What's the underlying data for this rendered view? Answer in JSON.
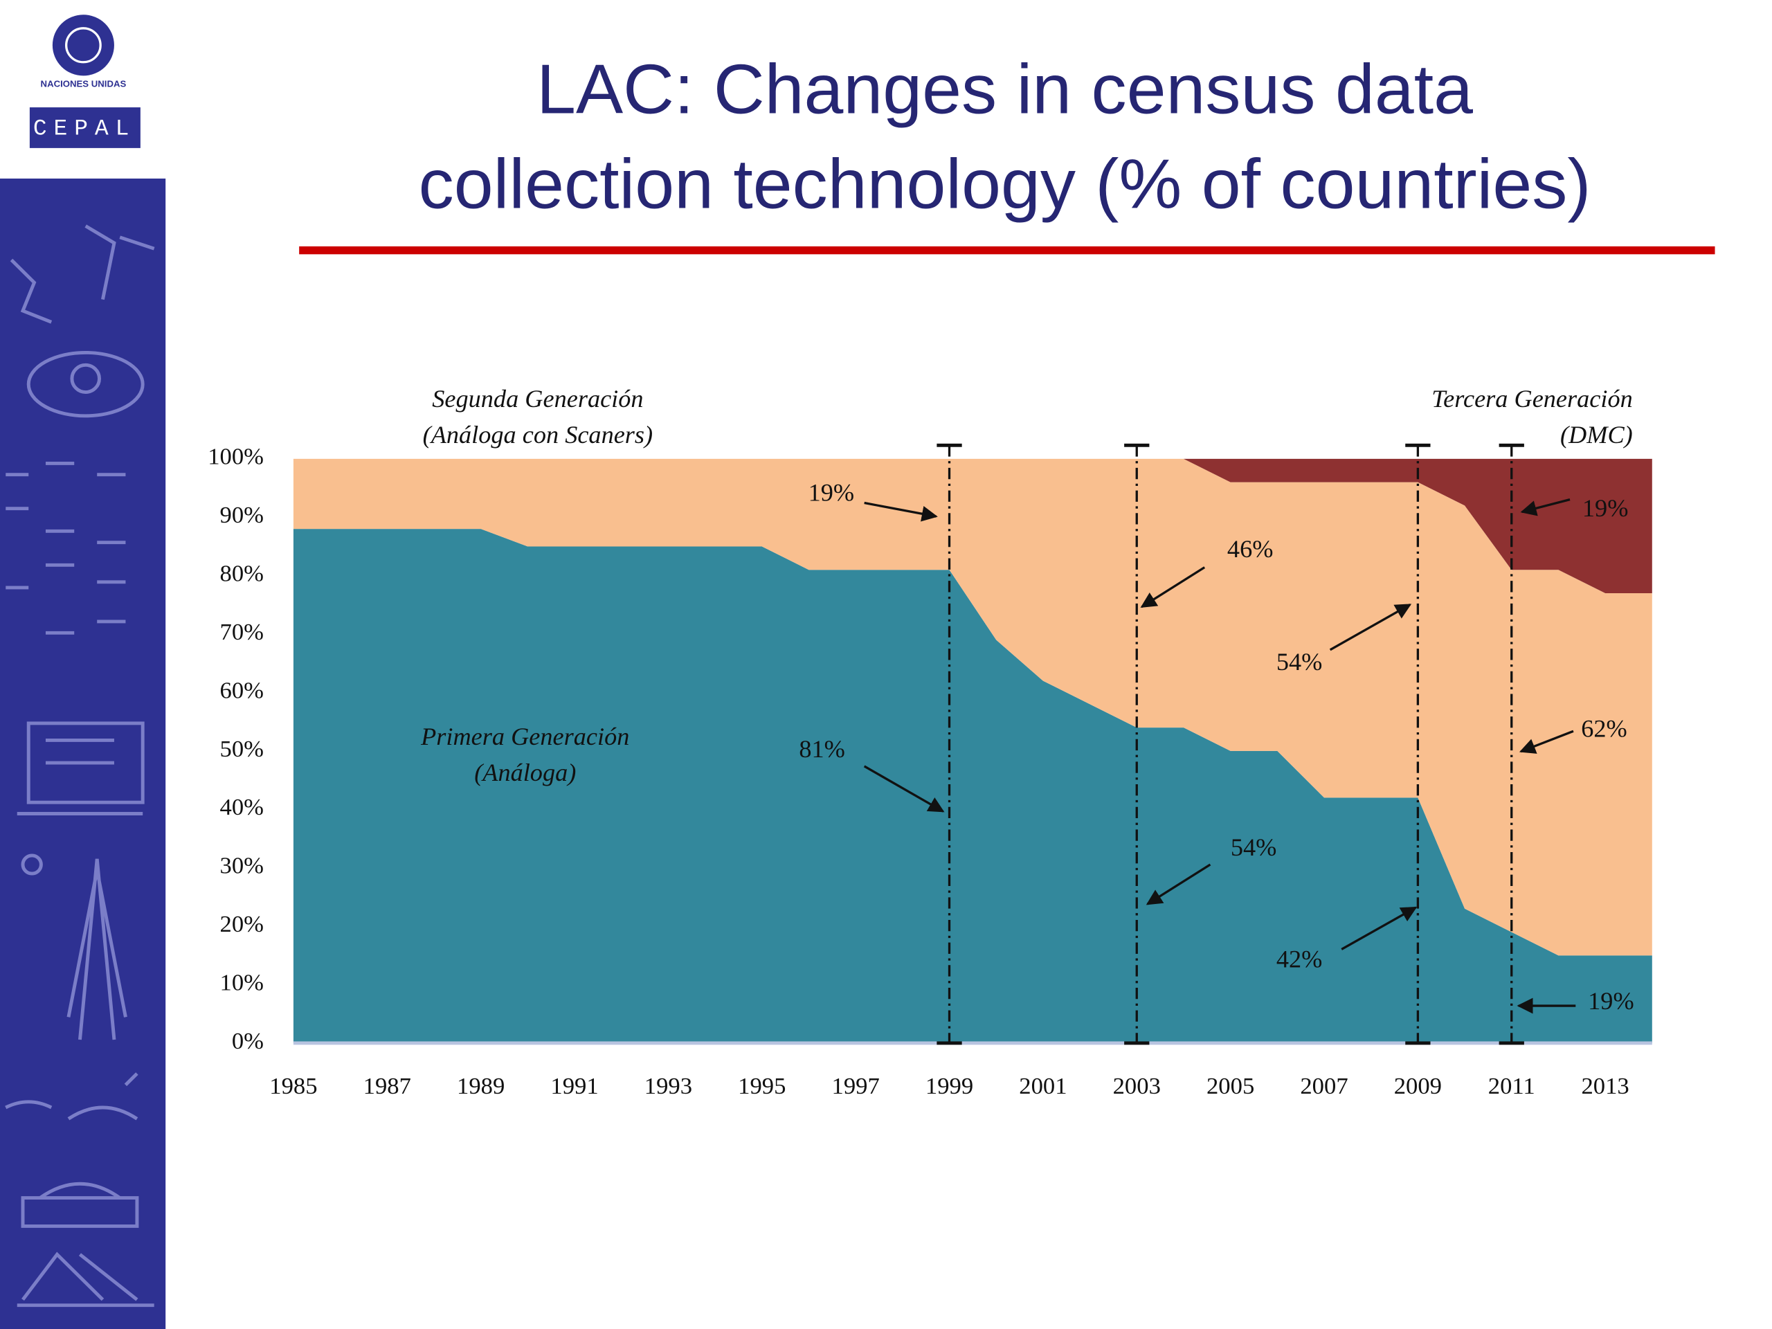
{
  "logo": {
    "org": "NACIONES UNIDAS",
    "name": "CEPAL"
  },
  "chart_data": {
    "type": "stacked-area",
    "title": [
      "LAC: Changes in census data",
      "collection technology (% of countries)"
    ],
    "x": [
      1985,
      1986,
      1987,
      1988,
      1989,
      1990,
      1991,
      1992,
      1993,
      1994,
      1995,
      1996,
      1997,
      1998,
      1999,
      2000,
      2001,
      2002,
      2003,
      2004,
      2005,
      2006,
      2007,
      2008,
      2009,
      2010,
      2011,
      2012,
      2013,
      2014
    ],
    "series": [
      {
        "name": "Primera Generación",
        "note": "(Análoga)",
        "color": "#33889c",
        "values": [
          88,
          88,
          88,
          88,
          88,
          85,
          85,
          85,
          85,
          85,
          85,
          81,
          81,
          81,
          81,
          69,
          62,
          58,
          54,
          54,
          50,
          50,
          42,
          42,
          42,
          23,
          19,
          15,
          15,
          15
        ]
      },
      {
        "name": "Segunda Generación",
        "note": "(Análoga con Scaners)",
        "color": "#f9bf8f",
        "values": [
          12,
          12,
          12,
          12,
          12,
          15,
          15,
          15,
          15,
          15,
          15,
          19,
          19,
          19,
          19,
          31,
          38,
          42,
          46,
          46,
          46,
          46,
          54,
          54,
          54,
          69,
          62,
          66,
          62,
          62
        ]
      },
      {
        "name": "Tercera Generación",
        "note": "(DMC)",
        "color": "#8e3131",
        "values": [
          0,
          0,
          0,
          0,
          0,
          0,
          0,
          0,
          0,
          0,
          0,
          0,
          0,
          0,
          0,
          0,
          0,
          0,
          0,
          0,
          4,
          4,
          4,
          4,
          4,
          8,
          19,
          19,
          23,
          23
        ]
      }
    ],
    "xlim": [
      1985,
      2014
    ],
    "xticks": [
      1985,
      1987,
      1989,
      1991,
      1993,
      1995,
      1997,
      1999,
      2001,
      2003,
      2005,
      2007,
      2009,
      2011,
      2013
    ],
    "ylim": [
      0,
      100
    ],
    "yticks": [
      {
        "value": 0,
        "label": "0%"
      },
      {
        "value": 10,
        "label": "10%"
      },
      {
        "value": 20,
        "label": "20%"
      },
      {
        "value": 30,
        "label": "30%"
      },
      {
        "value": 40,
        "label": "40%"
      },
      {
        "value": 50,
        "label": "50%"
      },
      {
        "value": 60,
        "label": "60%"
      },
      {
        "value": 70,
        "label": "70%"
      },
      {
        "value": 80,
        "label": "80%"
      },
      {
        "value": 90,
        "label": "90%"
      },
      {
        "value": 100,
        "label": "100%"
      }
    ],
    "reference_lines": [
      1999,
      2003,
      2009,
      2011
    ],
    "annotations": [
      "19%",
      "46%",
      "54%",
      "81%",
      "54%",
      "42%",
      "19%",
      "62%",
      "19%"
    ]
  }
}
